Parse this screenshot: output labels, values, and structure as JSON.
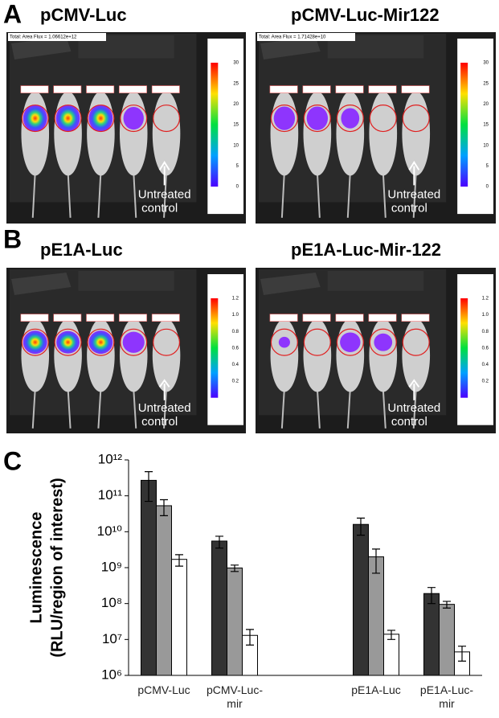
{
  "panels": [
    {
      "letter": "A",
      "images": [
        {
          "title": "pCMV-Luc",
          "header": "Total: Area Flux = 1.06612e+12",
          "annotation": [
            "Untreated",
            "control"
          ],
          "colorbar_ticks": [
            "30",
            "25",
            "20",
            "15",
            "10",
            "5",
            "0"
          ]
        },
        {
          "title": "pCMV-Luc-Mir122",
          "header": "Total: Area Flux = 1.71428e+10",
          "annotation": [
            "Untreated",
            "control"
          ],
          "colorbar_ticks": [
            "30",
            "25",
            "20",
            "15",
            "10",
            "5",
            "0"
          ]
        }
      ]
    },
    {
      "letter": "B",
      "images": [
        {
          "title": "pE1A-Luc",
          "annotation": [
            "Untreated",
            "control"
          ],
          "colorbar_ticks": [
            "1.2",
            "1.0",
            "0.8",
            "0.6",
            "0.4",
            "0.2"
          ]
        },
        {
          "title": "pE1A-Luc-Mir-122",
          "annotation": [
            "Untreated",
            "control"
          ],
          "colorbar_ticks": [
            "1.2",
            "1.0",
            "0.8",
            "0.6",
            "0.4",
            "0.2"
          ]
        }
      ]
    }
  ],
  "chart_letter": "C",
  "chart_data": {
    "type": "bar",
    "ylabel": [
      "Luminescence",
      "(RLU/region of interest)"
    ],
    "categories": [
      "pCMV-Luc",
      "pCMV-Luc-mir",
      null,
      "pE1A-Luc",
      "pE1A-Luc-mir"
    ],
    "series": [
      {
        "color": "#333333",
        "values": [
          270000000000,
          5500000000,
          null,
          16000000000,
          190000000
        ],
        "errors": [
          200000000000,
          2000000000,
          null,
          8000000000,
          90000000
        ]
      },
      {
        "color": "#999999",
        "values": [
          53000000000,
          980000000,
          null,
          2000000000,
          95000000
        ],
        "errors": [
          25000000000,
          200000000,
          null,
          1300000000,
          20000000
        ]
      },
      {
        "color": "#ffffff",
        "values": [
          1700000000,
          13000000,
          null,
          14000000,
          4500000
        ],
        "errors": [
          600000000,
          6000000,
          null,
          4000000,
          2000000
        ]
      }
    ],
    "log_scale": true,
    "ylim": [
      1000000,
      1000000000000
    ],
    "yticks": [
      {
        "value": 1000000,
        "label": "10⁶"
      },
      {
        "value": 10000000,
        "label": "10⁷"
      },
      {
        "value": 100000000,
        "label": "10⁸"
      },
      {
        "value": 1000000000,
        "label": "10⁹"
      },
      {
        "value": 10000000000,
        "label": "10¹⁰"
      },
      {
        "value": 100000000000,
        "label": "10¹¹"
      },
      {
        "value": 1000000000000,
        "label": "10¹²"
      }
    ]
  }
}
